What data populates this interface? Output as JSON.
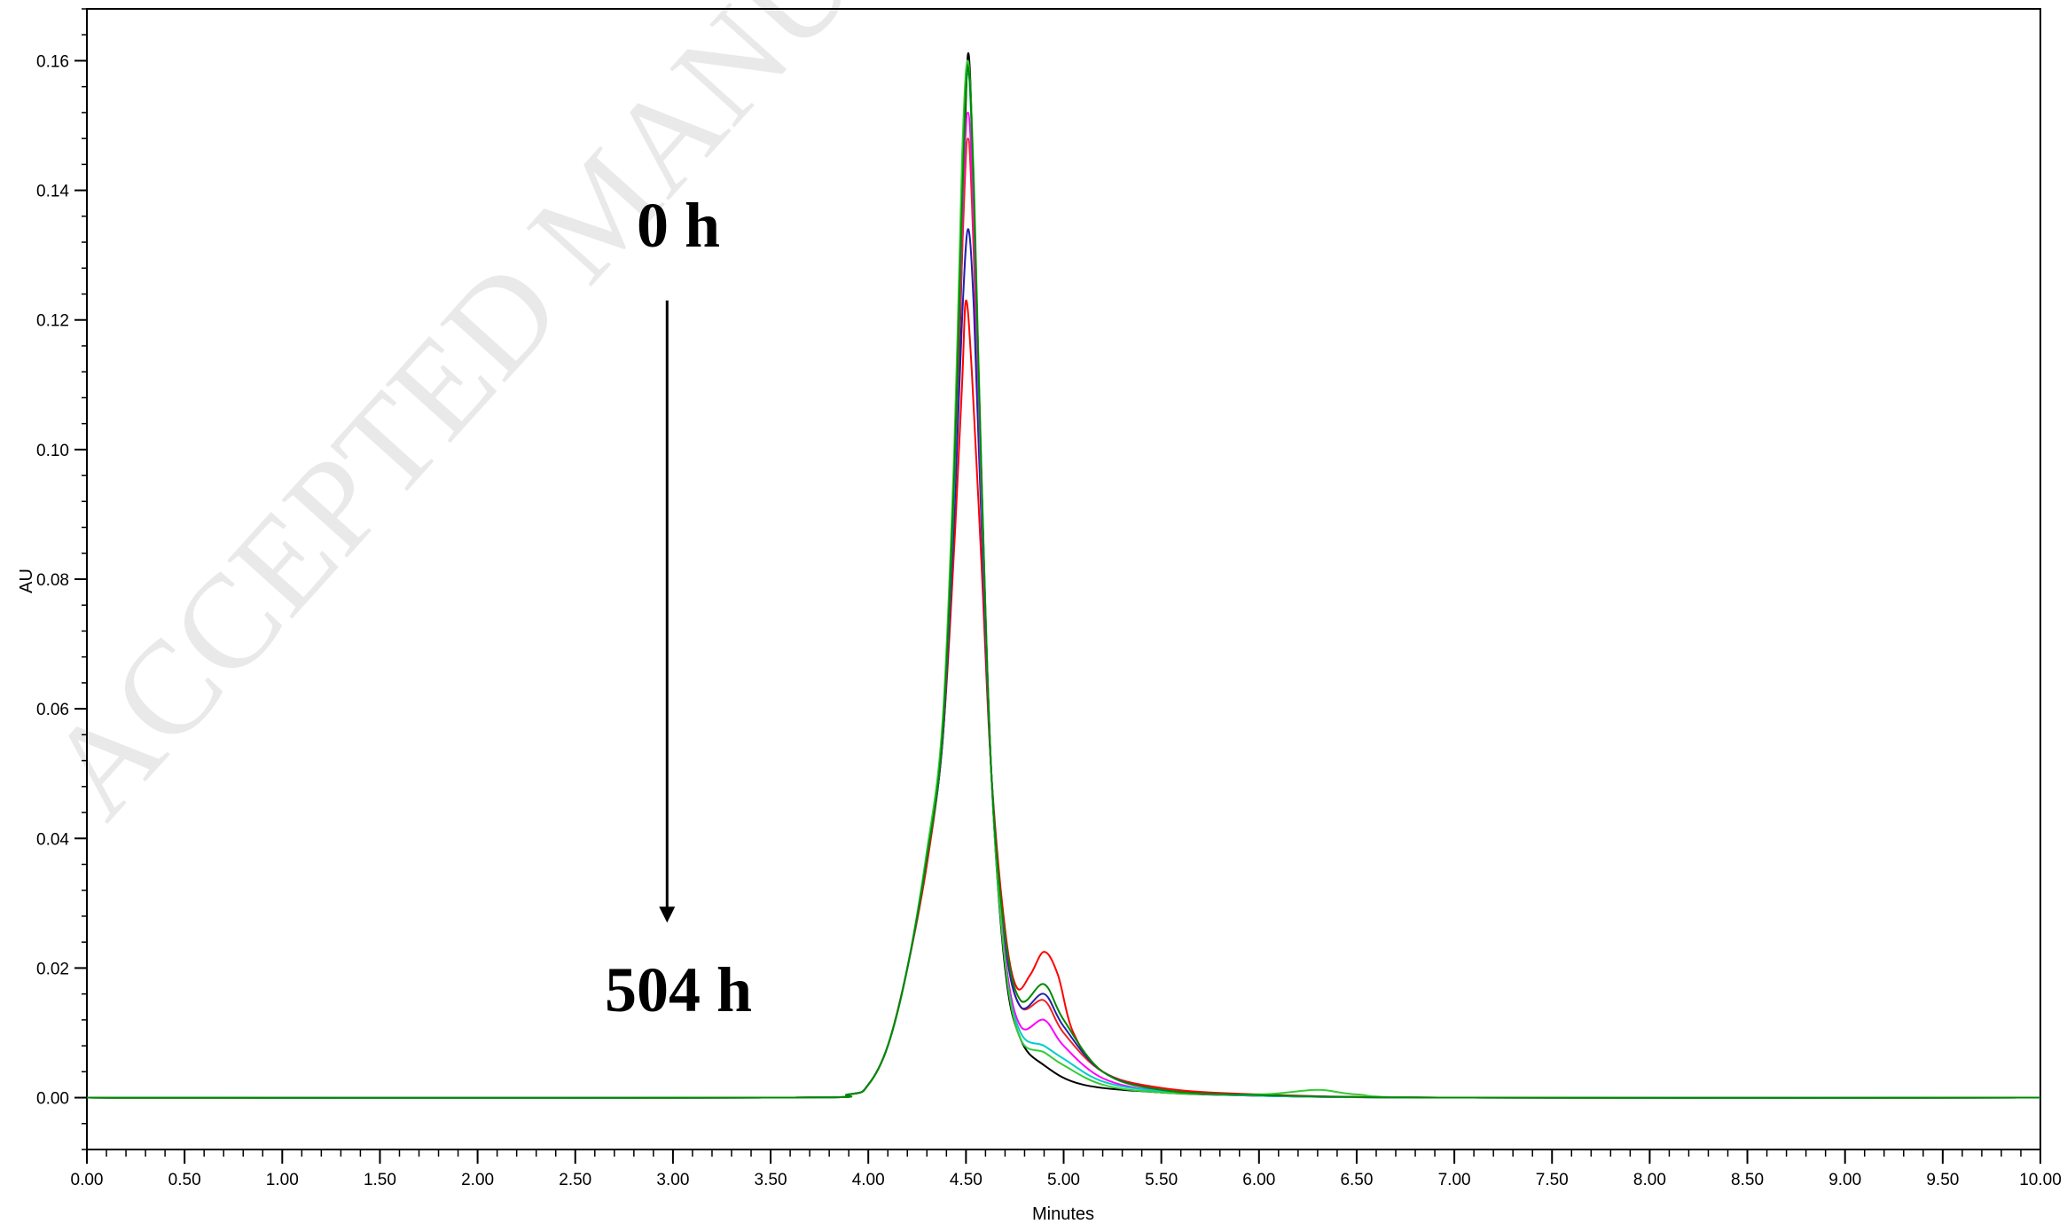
{
  "watermark": "ACCEPTED MANUSCRIPT",
  "chart_data": {
    "type": "line",
    "title": "",
    "xlabel": "Minutes",
    "ylabel": "AU",
    "xlim": [
      0,
      10
    ],
    "ylim": [
      -0.008,
      0.168
    ],
    "x_ticks": [
      "0.00",
      "0.50",
      "1.00",
      "1.50",
      "2.00",
      "2.50",
      "3.00",
      "3.50",
      "4.00",
      "4.50",
      "5.00",
      "5.50",
      "6.00",
      "6.50",
      "7.00",
      "7.50",
      "8.00",
      "8.50",
      "9.00",
      "9.50",
      "10.00"
    ],
    "y_ticks": [
      "0.00",
      "0.02",
      "0.04",
      "0.06",
      "0.08",
      "0.10",
      "0.12",
      "0.14",
      "0.16"
    ],
    "grid": false,
    "legend": "none",
    "annotations": {
      "start_label": "0 h",
      "end_label": "504 h",
      "arrow_x": 2.97,
      "arrow_from_y": 0.123,
      "arrow_to_y": 0.027
    },
    "series": [
      {
        "color": "#000000",
        "points": [
          [
            0,
            0
          ],
          [
            3.5,
            0
          ],
          [
            3.9,
            0.0005
          ],
          [
            4.0,
            0.002
          ],
          [
            4.1,
            0.008
          ],
          [
            4.2,
            0.02
          ],
          [
            4.3,
            0.037
          ],
          [
            4.38,
            0.055
          ],
          [
            4.44,
            0.09
          ],
          [
            4.48,
            0.13
          ],
          [
            4.51,
            0.161
          ],
          [
            4.54,
            0.14
          ],
          [
            4.58,
            0.095
          ],
          [
            4.63,
            0.05
          ],
          [
            4.7,
            0.02
          ],
          [
            4.78,
            0.009
          ],
          [
            4.9,
            0.005
          ],
          [
            5.1,
            0.002
          ],
          [
            5.5,
            0.0008
          ],
          [
            6.0,
            0.0003
          ],
          [
            7.0,
            0
          ],
          [
            10,
            0
          ]
        ]
      },
      {
        "color": "#ff0000",
        "points": [
          [
            0,
            0
          ],
          [
            3.5,
            0
          ],
          [
            3.9,
            0.0005
          ],
          [
            4.0,
            0.002
          ],
          [
            4.1,
            0.008
          ],
          [
            4.2,
            0.02
          ],
          [
            4.3,
            0.036
          ],
          [
            4.38,
            0.055
          ],
          [
            4.44,
            0.085
          ],
          [
            4.48,
            0.11
          ],
          [
            4.5,
            0.123
          ],
          [
            4.53,
            0.112
          ],
          [
            4.58,
            0.082
          ],
          [
            4.63,
            0.05
          ],
          [
            4.7,
            0.026
          ],
          [
            4.76,
            0.017
          ],
          [
            4.83,
            0.019
          ],
          [
            4.9,
            0.0225
          ],
          [
            4.97,
            0.019
          ],
          [
            5.05,
            0.01
          ],
          [
            5.2,
            0.004
          ],
          [
            5.5,
            0.0015
          ],
          [
            6.0,
            0.0005
          ],
          [
            7.0,
            0
          ],
          [
            10,
            0
          ]
        ]
      },
      {
        "color": "#ee2222",
        "points": [
          [
            0,
            0
          ],
          [
            3.5,
            0
          ],
          [
            3.9,
            0.0005
          ],
          [
            4.0,
            0.002
          ],
          [
            4.1,
            0.008
          ],
          [
            4.2,
            0.02
          ],
          [
            4.3,
            0.037
          ],
          [
            4.38,
            0.056
          ],
          [
            4.44,
            0.095
          ],
          [
            4.48,
            0.13
          ],
          [
            4.51,
            0.148
          ],
          [
            4.54,
            0.13
          ],
          [
            4.58,
            0.09
          ],
          [
            4.63,
            0.05
          ],
          [
            4.7,
            0.024
          ],
          [
            4.78,
            0.014
          ],
          [
            4.9,
            0.015
          ],
          [
            5.0,
            0.01
          ],
          [
            5.2,
            0.004
          ],
          [
            5.5,
            0.0012
          ],
          [
            6.0,
            0.0004
          ],
          [
            7.0,
            0
          ],
          [
            10,
            0
          ]
        ]
      },
      {
        "color": "#2222aa",
        "points": [
          [
            0,
            0
          ],
          [
            3.5,
            0
          ],
          [
            3.9,
            0.0005
          ],
          [
            4.0,
            0.002
          ],
          [
            4.1,
            0.008
          ],
          [
            4.2,
            0.02
          ],
          [
            4.3,
            0.037
          ],
          [
            4.38,
            0.055
          ],
          [
            4.44,
            0.09
          ],
          [
            4.48,
            0.12
          ],
          [
            4.51,
            0.134
          ],
          [
            4.54,
            0.122
          ],
          [
            4.58,
            0.088
          ],
          [
            4.63,
            0.05
          ],
          [
            4.7,
            0.024
          ],
          [
            4.78,
            0.014
          ],
          [
            4.9,
            0.016
          ],
          [
            5.0,
            0.011
          ],
          [
            5.2,
            0.004
          ],
          [
            5.5,
            0.0012
          ],
          [
            6.0,
            0.0004
          ],
          [
            7.0,
            0
          ],
          [
            10,
            0
          ]
        ]
      },
      {
        "color": "#ff00ff",
        "points": [
          [
            0,
            0
          ],
          [
            3.5,
            0
          ],
          [
            3.9,
            0.0005
          ],
          [
            4.0,
            0.002
          ],
          [
            4.1,
            0.008
          ],
          [
            4.2,
            0.02
          ],
          [
            4.3,
            0.037
          ],
          [
            4.38,
            0.056
          ],
          [
            4.44,
            0.095
          ],
          [
            4.48,
            0.135
          ],
          [
            4.51,
            0.152
          ],
          [
            4.54,
            0.135
          ],
          [
            4.58,
            0.092
          ],
          [
            4.63,
            0.05
          ],
          [
            4.7,
            0.022
          ],
          [
            4.78,
            0.011
          ],
          [
            4.9,
            0.012
          ],
          [
            5.0,
            0.008
          ],
          [
            5.2,
            0.003
          ],
          [
            5.5,
            0.001
          ],
          [
            6.0,
            0.0003
          ],
          [
            7.0,
            0
          ],
          [
            10,
            0
          ]
        ]
      },
      {
        "color": "#00cccc",
        "points": [
          [
            0,
            0
          ],
          [
            3.5,
            0
          ],
          [
            3.9,
            0.0005
          ],
          [
            4.0,
            0.002
          ],
          [
            4.1,
            0.008
          ],
          [
            4.2,
            0.02
          ],
          [
            4.3,
            0.038
          ],
          [
            4.38,
            0.057
          ],
          [
            4.44,
            0.095
          ],
          [
            4.48,
            0.14
          ],
          [
            4.51,
            0.158
          ],
          [
            4.54,
            0.14
          ],
          [
            4.58,
            0.094
          ],
          [
            4.63,
            0.05
          ],
          [
            4.7,
            0.021
          ],
          [
            4.78,
            0.01
          ],
          [
            4.9,
            0.008
          ],
          [
            5.0,
            0.006
          ],
          [
            5.2,
            0.0025
          ],
          [
            5.5,
            0.001
          ],
          [
            6.0,
            0.0003
          ],
          [
            7.0,
            0
          ],
          [
            10,
            0
          ]
        ]
      },
      {
        "color": "#33cc33",
        "points": [
          [
            0,
            0
          ],
          [
            3.5,
            0
          ],
          [
            3.9,
            0.0005
          ],
          [
            4.0,
            0.002
          ],
          [
            4.1,
            0.008
          ],
          [
            4.2,
            0.02
          ],
          [
            4.3,
            0.038
          ],
          [
            4.38,
            0.058
          ],
          [
            4.44,
            0.1
          ],
          [
            4.48,
            0.145
          ],
          [
            4.51,
            0.16
          ],
          [
            4.54,
            0.142
          ],
          [
            4.58,
            0.096
          ],
          [
            4.63,
            0.05
          ],
          [
            4.7,
            0.021
          ],
          [
            4.78,
            0.009
          ],
          [
            4.9,
            0.007
          ],
          [
            5.0,
            0.005
          ],
          [
            5.2,
            0.002
          ],
          [
            5.5,
            0.0008
          ],
          [
            6.0,
            0.0005
          ],
          [
            6.3,
            0.0012
          ],
          [
            6.5,
            0.0005
          ],
          [
            7.0,
            0
          ],
          [
            10,
            0
          ]
        ]
      },
      {
        "color": "#008800",
        "points": [
          [
            0,
            0
          ],
          [
            3.5,
            0
          ],
          [
            3.9,
            0.0005
          ],
          [
            4.0,
            0.002
          ],
          [
            4.1,
            0.008
          ],
          [
            4.2,
            0.02
          ],
          [
            4.3,
            0.037
          ],
          [
            4.38,
            0.056
          ],
          [
            4.44,
            0.096
          ],
          [
            4.48,
            0.138
          ],
          [
            4.51,
            0.159
          ],
          [
            4.54,
            0.14
          ],
          [
            4.58,
            0.095
          ],
          [
            4.63,
            0.05
          ],
          [
            4.7,
            0.025
          ],
          [
            4.78,
            0.015
          ],
          [
            4.9,
            0.0175
          ],
          [
            5.0,
            0.012
          ],
          [
            5.2,
            0.004
          ],
          [
            5.5,
            0.0012
          ],
          [
            6.0,
            0.0004
          ],
          [
            7.0,
            0
          ],
          [
            10,
            0
          ]
        ]
      }
    ]
  }
}
